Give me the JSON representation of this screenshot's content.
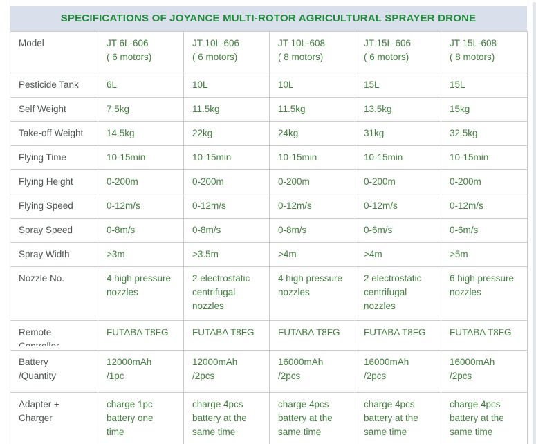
{
  "header": {
    "title": "SPECIFICATIONS OF JOYANCE MULTI-ROTOR AGRICULTURAL SPRAYER DRONE"
  },
  "colors": {
    "header_bg": "#d9e0ec",
    "title_green": "#1f8b38",
    "value_green": "#43803f",
    "label_gray": "#4e5851",
    "border": "#cccccc"
  },
  "table": {
    "rows": [
      {
        "label": "Model",
        "values": [
          "JT 6L-606\n( 6 motors)",
          "JT 10L-606\n( 6 motors)",
          "JT 10L-608\n( 8 motors)",
          "JT 15L-606\n( 6 motors)",
          "JT 15L-608\n( 8 motors)"
        ]
      },
      {
        "label": "Pesticide Tank",
        "values": [
          "6L",
          "10L",
          "10L",
          "15L",
          "15L"
        ]
      },
      {
        "label": "Self Weight",
        "values": [
          "7.5kg",
          "11.5kg",
          "11.5kg",
          "13.5kg",
          "15kg"
        ]
      },
      {
        "label": "Take-off Weight",
        "values": [
          "14.5kg",
          "22kg",
          "24kg",
          "31kg",
          "32.5kg"
        ]
      },
      {
        "label": "Flying Time",
        "values": [
          "10-15min",
          "10-15min",
          "10-15min",
          "10-15min",
          "10-15min"
        ]
      },
      {
        "label": "Flying Height",
        "values": [
          "0-200m",
          "0-200m",
          "0-200m",
          "0-200m",
          "0-200m"
        ]
      },
      {
        "label": "Flying Speed",
        "values": [
          "0-12m/s",
          "0-12m/s",
          "0-12m/s",
          "0-12m/s",
          "0-12m/s"
        ]
      },
      {
        "label": "Spray Speed",
        "values": [
          "0-8m/s",
          "0-8m/s",
          "0-8m/s",
          "0-6m/s",
          "0-6m/s"
        ]
      },
      {
        "label": "Spray Width",
        "values": [
          ">3m",
          ">3.5m",
          ">4m",
          ">4m",
          ">5m"
        ]
      },
      {
        "label": "Nozzle No.",
        "values": [
          "4 high pressure\nnozzles",
          "2 electrostatic\ncentrifugal\nnozzles",
          "4 high pressure\nnozzles",
          "2 electrostatic\ncentrifugal\nnozzles",
          "6 high pressure\nnozzles"
        ]
      },
      {
        "label": "Remote\nController",
        "values": [
          "FUTABA T8FG",
          "FUTABA T8FG",
          "FUTABA T8FG",
          "FUTABA T8FG",
          "FUTABA T8FG"
        ]
      },
      {
        "label": "Battery\n/Quantity",
        "values": [
          "12000mAh\n/1pc",
          "12000mAh\n/2pcs",
          "16000mAh\n/2pcs",
          "16000mAh\n/2pcs",
          "16000mAh\n/2pcs"
        ]
      },
      {
        "label": "Adapter +\nCharger",
        "values": [
          "charge 1pc\nbattery one\ntime",
          "charge 4pcs\nbattery at the\nsame time",
          "charge 4pcs\nbattery at the\nsame time",
          "charge 4pcs\nbattery at the\nsame time",
          "charge 4pcs\nbattery at the\nsame time"
        ]
      }
    ]
  }
}
